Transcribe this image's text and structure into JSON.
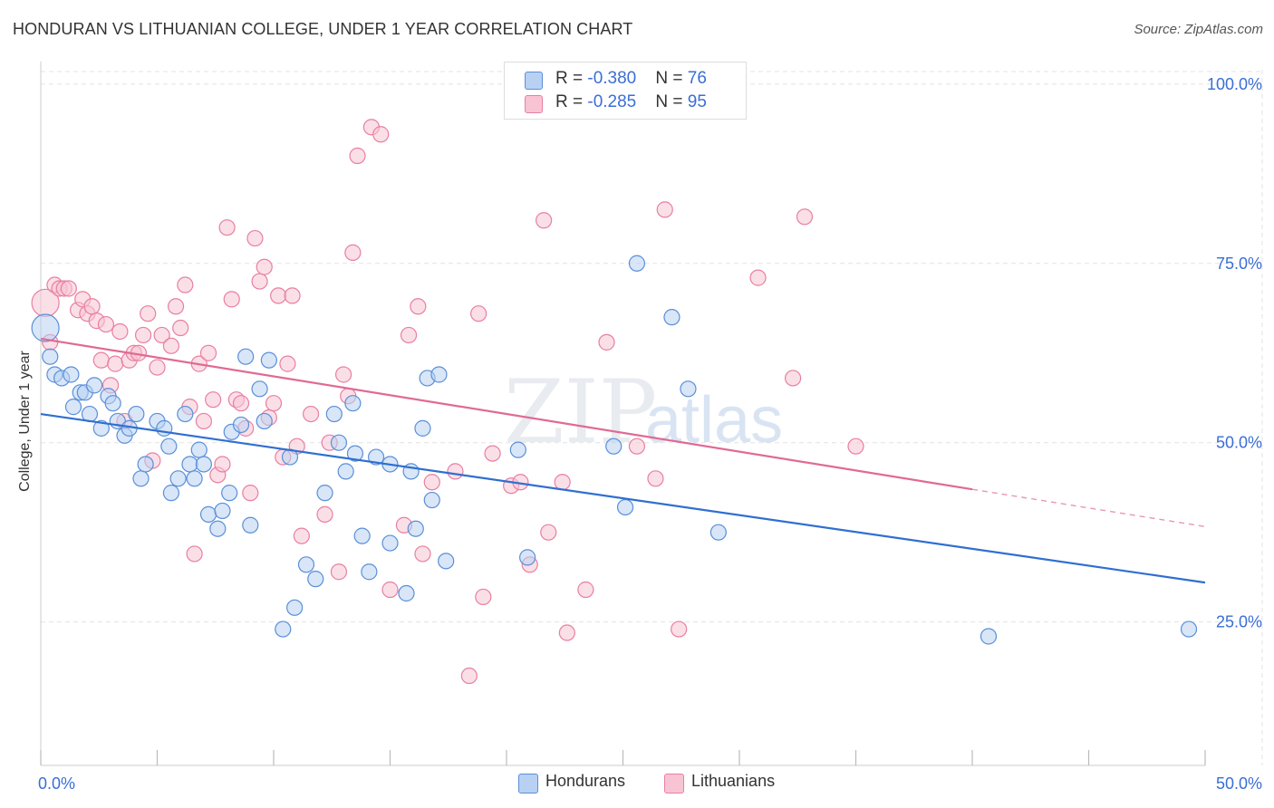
{
  "header": {
    "title": "HONDURAN VS LITHUANIAN COLLEGE, UNDER 1 YEAR CORRELATION CHART",
    "source": "Source: ZipAtlas.com"
  },
  "watermark": {
    "zip": "ZIP",
    "atlas": "atlas"
  },
  "legend": {
    "r_label": "R = ",
    "n_label": "N = ",
    "rows": [
      {
        "r": "-0.380",
        "n": "76",
        "color": "#b8d1f3"
      },
      {
        "r": "-0.285",
        "n": "95",
        "color": "#f8c4d4"
      }
    ]
  },
  "series_legend": [
    {
      "label": "Hondurans",
      "color": "#b8d1f3"
    },
    {
      "label": "Lithuanians",
      "color": "#f8c4d4"
    }
  ],
  "colors": {
    "blue_stroke": "#5a8fd8",
    "blue_fill": "#b8d1f3",
    "blue_line": "#2f6fd0",
    "pink_stroke": "#e87fa2",
    "pink_fill": "#f8c4d4",
    "pink_line": "#e06a93",
    "grid": "#e3e3e3",
    "axis_text": "#3a6ed6"
  },
  "chart_data": {
    "type": "scatter",
    "title": "HONDURAN VS LITHUANIAN COLLEGE, UNDER 1 YEAR CORRELATION CHART",
    "xlabel": "",
    "ylabel": "College, Under 1 year",
    "xlim": [
      0,
      50
    ],
    "ylim": [
      5,
      102
    ],
    "x_tick_labels": [
      "0.0%",
      "50.0%"
    ],
    "y_ticks": [
      25,
      50,
      75,
      100
    ],
    "y_tick_labels": [
      "25.0%",
      "50.0%",
      "75.0%",
      "100.0%"
    ],
    "grid": true,
    "legend_position": "top-center",
    "series": [
      {
        "name": "Hondurans",
        "R": -0.38,
        "N": 76,
        "trend": {
          "x": [
            0,
            50
          ],
          "y": [
            54,
            30.5
          ]
        },
        "points": [
          [
            0.2,
            66
          ],
          [
            0.4,
            62
          ],
          [
            0.6,
            59.5
          ],
          [
            0.9,
            59
          ],
          [
            1.3,
            59.5
          ],
          [
            1.4,
            55
          ],
          [
            1.7,
            57
          ],
          [
            1.9,
            57
          ],
          [
            2.1,
            54
          ],
          [
            2.3,
            58
          ],
          [
            2.6,
            52
          ],
          [
            2.9,
            56.5
          ],
          [
            3.1,
            55.5
          ],
          [
            3.3,
            53
          ],
          [
            3.6,
            51
          ],
          [
            3.8,
            52
          ],
          [
            4.1,
            54
          ],
          [
            4.3,
            45
          ],
          [
            4.5,
            47
          ],
          [
            5,
            53
          ],
          [
            5.3,
            52
          ],
          [
            5.5,
            49.5
          ],
          [
            5.6,
            43
          ],
          [
            5.9,
            45
          ],
          [
            6.2,
            54
          ],
          [
            6.4,
            47
          ],
          [
            6.6,
            45
          ],
          [
            6.8,
            49
          ],
          [
            7,
            47
          ],
          [
            7.2,
            40
          ],
          [
            7.6,
            38
          ],
          [
            7.8,
            40.5
          ],
          [
            8.1,
            43
          ],
          [
            8.2,
            51.5
          ],
          [
            8.6,
            52.5
          ],
          [
            8.8,
            62
          ],
          [
            9,
            38.5
          ],
          [
            9.4,
            57.5
          ],
          [
            9.8,
            61.5
          ],
          [
            9.6,
            53
          ],
          [
            10.4,
            24
          ],
          [
            10.7,
            48
          ],
          [
            10.9,
            27
          ],
          [
            11.4,
            33
          ],
          [
            11.8,
            31
          ],
          [
            12.2,
            43
          ],
          [
            12.6,
            54
          ],
          [
            12.8,
            50
          ],
          [
            13.1,
            46
          ],
          [
            13.4,
            55.5
          ],
          [
            13.5,
            48.5
          ],
          [
            13.8,
            37
          ],
          [
            14.1,
            32
          ],
          [
            14.4,
            48
          ],
          [
            15,
            36
          ],
          [
            15,
            47
          ],
          [
            15.7,
            29
          ],
          [
            15.9,
            46
          ],
          [
            16.1,
            38
          ],
          [
            16.4,
            52
          ],
          [
            16.6,
            59
          ],
          [
            16.8,
            42
          ],
          [
            17.1,
            59.5
          ],
          [
            17.4,
            33.5
          ],
          [
            20.5,
            49
          ],
          [
            20.9,
            34
          ],
          [
            24.6,
            49.5
          ],
          [
            25.1,
            41
          ],
          [
            25.6,
            75
          ],
          [
            27.1,
            67.5
          ],
          [
            27.8,
            57.5
          ],
          [
            29.1,
            37.5
          ],
          [
            40.7,
            23
          ],
          [
            49.3,
            24
          ]
        ]
      },
      {
        "name": "Lithuanians",
        "R": -0.285,
        "N": 95,
        "trend": {
          "x": [
            0,
            40
          ],
          "y": [
            64.5,
            43.5
          ]
        },
        "trend_dashed": {
          "x": [
            40,
            50
          ],
          "y": [
            43.5,
            38.3
          ]
        },
        "points": [
          [
            0.2,
            69.5
          ],
          [
            0.4,
            64
          ],
          [
            0.6,
            72
          ],
          [
            0.8,
            71.5
          ],
          [
            1,
            71.5
          ],
          [
            1.2,
            71.5
          ],
          [
            1.6,
            68.5
          ],
          [
            1.8,
            70
          ],
          [
            2,
            68
          ],
          [
            2.2,
            69
          ],
          [
            2.4,
            67
          ],
          [
            2.6,
            61.5
          ],
          [
            2.8,
            66.5
          ],
          [
            3,
            58
          ],
          [
            3.2,
            61
          ],
          [
            3.4,
            65.5
          ],
          [
            3.6,
            53
          ],
          [
            3.8,
            61.5
          ],
          [
            4,
            62.5
          ],
          [
            4.2,
            62.5
          ],
          [
            4.6,
            68
          ],
          [
            4.8,
            47.5
          ],
          [
            4.4,
            65
          ],
          [
            5,
            60.5
          ],
          [
            5.2,
            65
          ],
          [
            5.6,
            63.5
          ],
          [
            5.8,
            69
          ],
          [
            6,
            66
          ],
          [
            6.2,
            72
          ],
          [
            6.4,
            55
          ],
          [
            6.6,
            34.5
          ],
          [
            6.8,
            61
          ],
          [
            7,
            53
          ],
          [
            7.2,
            62.5
          ],
          [
            7.4,
            56
          ],
          [
            7.6,
            45.5
          ],
          [
            7.8,
            47
          ],
          [
            8,
            80
          ],
          [
            8.2,
            70
          ],
          [
            8.4,
            56
          ],
          [
            8.6,
            55.5
          ],
          [
            8.8,
            52
          ],
          [
            9,
            43
          ],
          [
            9.2,
            78.5
          ],
          [
            9.4,
            72.5
          ],
          [
            9.6,
            74.5
          ],
          [
            9.8,
            53.5
          ],
          [
            10,
            55.5
          ],
          [
            10.2,
            70.5
          ],
          [
            10.4,
            48
          ],
          [
            10.6,
            61
          ],
          [
            10.8,
            70.5
          ],
          [
            11,
            49.5
          ],
          [
            11.2,
            37
          ],
          [
            11.6,
            54
          ],
          [
            12.2,
            40
          ],
          [
            12.4,
            50
          ],
          [
            12.8,
            32
          ],
          [
            13,
            59.5
          ],
          [
            13.2,
            56.5
          ],
          [
            13.4,
            76.5
          ],
          [
            13.6,
            90
          ],
          [
            14.2,
            94
          ],
          [
            14.6,
            93
          ],
          [
            15,
            29.5
          ],
          [
            15.6,
            38.5
          ],
          [
            15.8,
            65
          ],
          [
            16.2,
            69
          ],
          [
            16.4,
            34.5
          ],
          [
            16.8,
            44.5
          ],
          [
            17.8,
            46
          ],
          [
            18.4,
            17.5
          ],
          [
            18.8,
            68
          ],
          [
            19,
            28.5
          ],
          [
            19.4,
            48.5
          ],
          [
            20.2,
            44
          ],
          [
            20.6,
            44.5
          ],
          [
            21,
            33
          ],
          [
            21.6,
            81
          ],
          [
            21.8,
            37.5
          ],
          [
            22.4,
            44.5
          ],
          [
            22.6,
            23.5
          ],
          [
            23.4,
            29.5
          ],
          [
            24.3,
            64
          ],
          [
            25.6,
            49.5
          ],
          [
            26.4,
            45
          ],
          [
            26.8,
            82.5
          ],
          [
            27.4,
            24
          ],
          [
            30.8,
            73
          ],
          [
            32.3,
            59
          ],
          [
            32.8,
            81.5
          ],
          [
            35,
            49.5
          ]
        ]
      }
    ]
  }
}
